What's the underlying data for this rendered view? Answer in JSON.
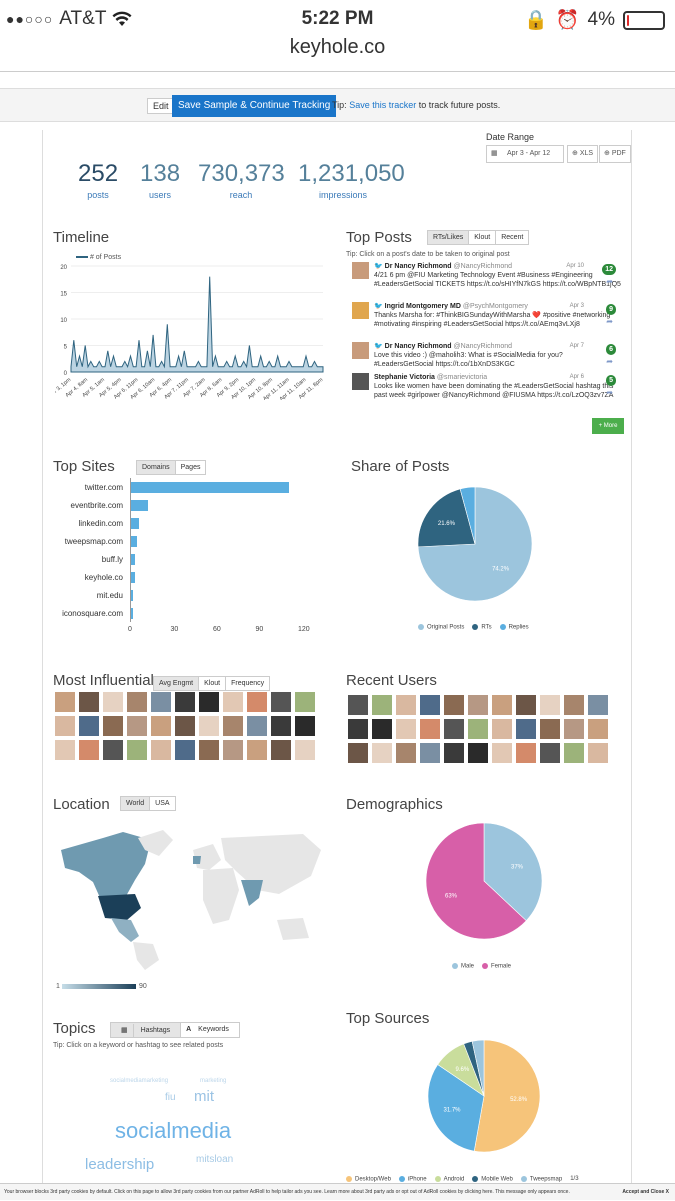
{
  "status": {
    "carrier": "AT&T",
    "time": "5:22 PM",
    "battery": "4%",
    "battery_level": 0.04
  },
  "url": "keyhole.co",
  "toolbar": {
    "edit": "Edit",
    "save": "Save Sample & Continue Tracking",
    "tip_prefix": "Tip:",
    "tip_link": "Save this tracker",
    "tip_suffix": "to track future posts."
  },
  "date_range": {
    "label": "Date Range",
    "value": "Apr 3 - Apr 12",
    "xls": "XLS",
    "pdf": "PDF"
  },
  "stats": [
    {
      "value": "252",
      "label": "posts"
    },
    {
      "value": "138",
      "label": "users"
    },
    {
      "value": "730,373",
      "label": "reach"
    },
    {
      "value": "1,231,050",
      "label": "impressions"
    }
  ],
  "timeline": {
    "title": "Timeline",
    "legend": "# of Posts",
    "yticks": [
      "20",
      "15",
      "10",
      "5",
      "0"
    ],
    "xlabels": [
      "Apr 3, 1pm",
      "Apr 4, 8am",
      "Apr 5, 1am",
      "Apr 5, 4pm",
      "Apr 6, 11pm",
      "Apr 6, 10am",
      "Apr 6, 4pm",
      "Apr 7, 11pm",
      "Apr 7, 2am",
      "Apr 8, 6am",
      "Apr 9, 2pm",
      "Apr 10, 1pm",
      "Apr 10, 8pm",
      "Apr 11, 11am",
      "Apr 11, 10am",
      "Apr 11, 8pm"
    ]
  },
  "chart_data": [
    {
      "type": "area",
      "title": "Timeline",
      "series": [
        {
          "name": "# of Posts",
          "values": [
            1,
            6,
            1,
            3,
            1,
            5,
            1,
            2,
            1,
            1,
            2,
            1,
            1,
            4,
            1,
            3,
            1,
            1,
            1,
            2,
            1,
            3,
            1,
            1,
            6,
            1,
            1,
            4,
            1,
            7,
            1,
            1,
            2,
            1,
            9,
            1,
            1,
            1,
            3,
            1,
            4,
            1,
            1,
            1,
            1,
            2,
            1,
            1,
            1,
            18,
            1,
            3,
            1,
            1,
            1,
            2,
            1,
            1,
            3,
            1,
            1,
            2,
            1,
            5,
            1,
            1,
            1,
            3,
            1,
            1,
            2,
            1,
            1,
            3,
            1,
            1,
            1,
            2,
            1,
            1,
            1,
            1,
            1,
            3,
            1,
            1,
            2,
            1,
            1,
            1
          ]
        }
      ],
      "ylim": [
        0,
        20
      ]
    },
    {
      "type": "bar",
      "title": "Top Sites",
      "categories": [
        "twitter.com",
        "eventbrite.com",
        "linkedin.com",
        "tweepsmap.com",
        "buff.ly",
        "keyhole.co",
        "mit.edu",
        "iconosquare.com"
      ],
      "values": [
        112,
        12,
        6,
        4,
        3,
        3,
        1,
        1
      ],
      "xlim": [
        0,
        120
      ]
    },
    {
      "type": "pie",
      "title": "Share of Posts",
      "categories": [
        "Original Posts",
        "RTs",
        "Replies"
      ],
      "values": [
        74.2,
        21.6,
        4.2
      ]
    },
    {
      "type": "pie",
      "title": "Demographics",
      "categories": [
        "Male",
        "Female"
      ],
      "values": [
        37,
        63
      ]
    },
    {
      "type": "pie",
      "title": "Top Sources",
      "categories": [
        "Desktop/Web",
        "iPhone",
        "Android",
        "Mobile Web",
        "Tweepsmap"
      ],
      "values": [
        52.8,
        31.7,
        9.6,
        2.5,
        3.4
      ]
    }
  ],
  "top_posts": {
    "title": "Top Posts",
    "tabs": [
      "RTs/Likes",
      "Klout",
      "Recent"
    ],
    "tip": "Tip: Click on a post's date to be taken to original post",
    "posts": [
      {
        "name": "Dr Nancy Richmond",
        "handle": "@NancyRichmond",
        "date": "Apr 10",
        "count": "12",
        "text": "4/21 6 pm @FIU Marketing Technology Event #Business #Engineering #LeadersGetSocial TICKETS https://t.co/sHIYfN7kGS https://t.co/WBpNTB1jQ5"
      },
      {
        "name": "Ingrid Montgomery MD",
        "handle": "@PsychMontgomery",
        "date": "Apr 3",
        "count": "9",
        "text": "Thanks Marsha for: #ThinkBIGSundayWithMarsha ❤️ #positive #networking #motivating #inspiring #LeadersGetSocial https://t.co/AEmq3vLXj8"
      },
      {
        "name": "Dr Nancy Richmond",
        "handle": "@NancyRichmond",
        "date": "Apr 7",
        "count": "6",
        "text": "Love this video :) @maholih3: What is #SocialMedia for you? #LeadersGetSocial https://t.co/1bXnDS3KGC"
      },
      {
        "name": "Stephanie Victoria",
        "handle": "@smarievictoria",
        "date": "Apr 6",
        "count": "5",
        "text": "Looks like women have been dominating the #LeadersGetSocial hashtag this past week #girlpower @NancyRichmond @FIUSMA https://t.co/LzOQ3zv7ZA"
      }
    ],
    "more": "+ More"
  },
  "top_sites": {
    "title": "Top Sites",
    "tabs": [
      "Domains",
      "Pages"
    ],
    "ticks": [
      "0",
      "30",
      "60",
      "90",
      "120"
    ]
  },
  "share": {
    "title": "Share of Posts",
    "labels": [
      "74.2%",
      "21.6%"
    ],
    "legend": [
      "Original Posts",
      "RTs",
      "Replies"
    ],
    "colors": [
      "#9cc5dd",
      "#2f6480",
      "#5aaee0"
    ]
  },
  "influential": {
    "title": "Most Influential",
    "tabs": [
      "Avg Engmt",
      "Klout",
      "Frequency"
    ]
  },
  "recent_users": {
    "title": "Recent Users"
  },
  "location": {
    "title": "Location",
    "tabs": [
      "World",
      "USA"
    ],
    "scale_min": "1",
    "scale_max": "90"
  },
  "demographics": {
    "title": "Demographics",
    "labels": [
      "37%",
      "63%"
    ],
    "legend": [
      "Male",
      "Female"
    ],
    "colors": [
      "#9cc5dd",
      "#d75fa8"
    ]
  },
  "topics": {
    "title": "Topics",
    "tabs": [
      "Hashtags",
      "Keywords"
    ],
    "tip": "Tip: Click on a keyword or hashtag to see related posts",
    "words": [
      "socialmedia",
      "leadership",
      "mit",
      "fiu",
      "mitsloan",
      "marketing",
      "socialmediamarketing"
    ]
  },
  "sources": {
    "title": "Top Sources",
    "labels": [
      "52.8%",
      "31.7%",
      "9.6%"
    ],
    "legend": [
      "Desktop/Web",
      "iPhone",
      "Android",
      "Mobile Web",
      "Tweepsmap"
    ],
    "colors": [
      "#f6c47a",
      "#5aaee0",
      "#c9dd9c",
      "#2f6480",
      "#9cc5dd"
    ],
    "page": "1/3"
  },
  "cookie": {
    "text": "Your browser blocks 3rd party cookies by default. Click on this page to allow 3rd party cookies from our partner AdRoll to help tailor ads you see. Learn more about 3rd party ads or opt out of AdRoll cookies by clicking here. This message only appears once.",
    "accept": "Accept and Close X"
  }
}
